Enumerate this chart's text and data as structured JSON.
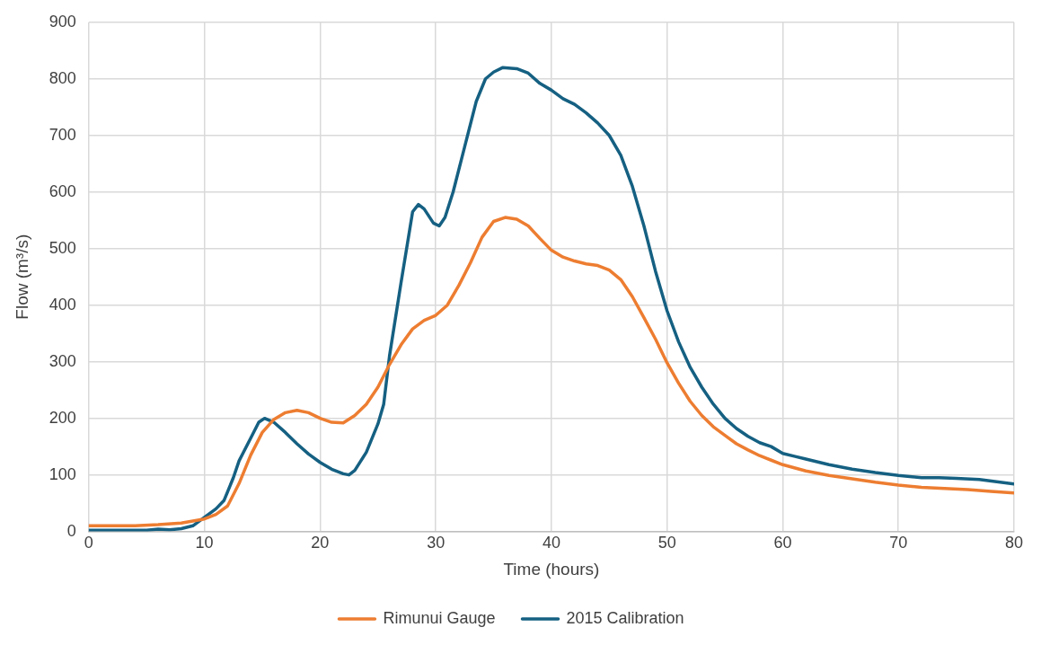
{
  "chart_data": {
    "type": "line",
    "xlabel": "Time (hours)",
    "ylabel": "Flow (m³/s)",
    "xlim": [
      0,
      80
    ],
    "xticks": [
      0,
      10,
      20,
      30,
      40,
      50,
      60,
      70,
      80
    ],
    "ylim": [
      0,
      900
    ],
    "yticks": [
      0,
      100,
      200,
      300,
      400,
      500,
      600,
      700,
      800,
      900
    ],
    "grid": true,
    "legend": "bottom",
    "marker": "none",
    "line_style": "solid",
    "series": [
      {
        "name": "Rimunui Gauge",
        "color": "#ed7d31",
        "x": [
          0,
          4,
          6,
          8,
          10,
          11,
          12,
          13,
          14,
          15,
          16,
          17,
          18,
          19,
          20,
          21,
          22,
          23,
          24,
          25,
          26,
          27,
          28,
          29,
          30,
          31,
          32,
          33,
          34,
          35,
          36,
          37,
          38,
          39,
          40,
          41,
          42,
          43,
          44,
          45,
          46,
          47,
          48,
          49,
          50,
          51,
          52,
          53,
          54,
          55,
          56,
          57,
          58,
          59,
          60,
          62,
          64,
          66,
          68,
          70,
          72,
          74,
          76,
          78,
          80
        ],
        "values": [
          10,
          10,
          12,
          15,
          22,
          30,
          45,
          85,
          135,
          175,
          198,
          210,
          214,
          210,
          200,
          193,
          192,
          205,
          225,
          255,
          295,
          330,
          358,
          373,
          382,
          400,
          435,
          475,
          520,
          548,
          555,
          552,
          540,
          518,
          497,
          485,
          478,
          473,
          470,
          462,
          445,
          415,
          378,
          340,
          298,
          262,
          230,
          205,
          185,
          170,
          155,
          144,
          134,
          126,
          118,
          107,
          99,
          93,
          87,
          82,
          78,
          76,
          74,
          71,
          68
        ]
      },
      {
        "name": "2015 Calibration",
        "color": "#156082",
        "x": [
          0,
          5,
          6,
          7,
          8,
          9,
          10,
          11,
          11.7,
          12.5,
          13,
          14,
          14.7,
          15.2,
          16,
          17,
          18,
          19,
          20,
          21,
          22,
          22.5,
          23,
          24,
          25,
          25.5,
          26,
          27,
          28,
          28.5,
          29,
          29.8,
          30.3,
          30.8,
          31.5,
          32.5,
          33.5,
          34.3,
          35,
          35.8,
          37,
          38,
          39,
          40,
          41,
          42,
          43,
          44,
          45,
          46,
          47,
          48,
          49,
          50,
          51,
          52,
          53,
          54,
          55,
          56,
          57,
          58,
          59,
          60,
          61,
          62,
          64,
          66,
          68,
          70,
          72,
          73.5,
          75,
          77,
          80
        ],
        "values": [
          2,
          2,
          4,
          3,
          5,
          10,
          25,
          40,
          55,
          95,
          125,
          165,
          193,
          200,
          193,
          175,
          155,
          137,
          122,
          110,
          102,
          100,
          108,
          140,
          190,
          225,
          310,
          440,
          565,
          578,
          570,
          545,
          540,
          555,
          600,
          680,
          760,
          800,
          812,
          820,
          818,
          810,
          792,
          780,
          765,
          755,
          740,
          722,
          700,
          665,
          610,
          540,
          460,
          390,
          335,
          290,
          255,
          225,
          200,
          182,
          168,
          157,
          150,
          138,
          133,
          128,
          118,
          110,
          104,
          99,
          95,
          95,
          94,
          92,
          84
        ]
      }
    ]
  }
}
